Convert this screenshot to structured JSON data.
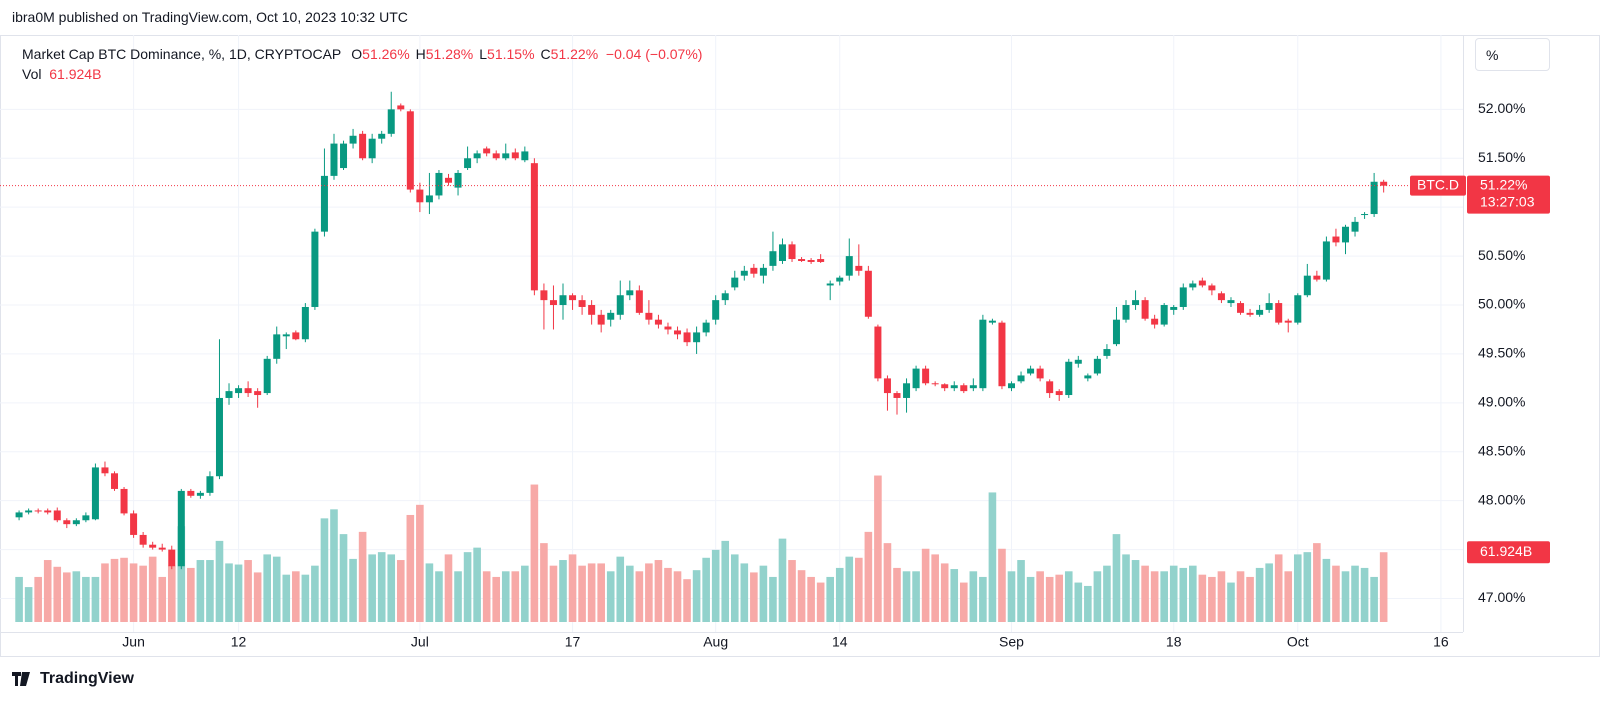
{
  "header": {
    "published": "ibra0M published on TradingView.com, Oct 10, 2023 10:32 UTC"
  },
  "legend": {
    "title": "Market Cap BTC Dominance, %, 1D, CRYPTOCAP",
    "items": [
      {
        "label": "O",
        "value": "51.26%"
      },
      {
        "label": "H",
        "value": "51.28%"
      },
      {
        "label": "L",
        "value": "51.15%"
      },
      {
        "label": "C",
        "value": "51.22%"
      }
    ],
    "change": "−0.04 (−0.07%)",
    "volume_label": "Vol",
    "volume_value": "61.924B"
  },
  "scale_button": "%",
  "footer": "TradingView",
  "chart_data": {
    "type": "candlestick",
    "x": [
      "2023-05-20",
      "2023-05-21",
      "2023-05-22",
      "2023-05-23",
      "2023-05-24",
      "2023-05-25",
      "2023-05-26",
      "2023-05-27",
      "2023-05-28",
      "2023-05-29",
      "2023-05-30",
      "2023-05-31",
      "2023-06-01",
      "2023-06-02",
      "2023-06-03",
      "2023-06-04",
      "2023-06-05",
      "2023-06-06",
      "2023-06-07",
      "2023-06-08",
      "2023-06-09",
      "2023-06-10",
      "2023-06-11",
      "2023-06-12",
      "2023-06-13",
      "2023-06-14",
      "2023-06-15",
      "2023-06-16",
      "2023-06-17",
      "2023-06-18",
      "2023-06-19",
      "2023-06-20",
      "2023-06-21",
      "2023-06-22",
      "2023-06-23",
      "2023-06-24",
      "2023-06-25",
      "2023-06-26",
      "2023-06-27",
      "2023-06-28",
      "2023-06-29",
      "2023-06-30",
      "2023-07-01",
      "2023-07-02",
      "2023-07-03",
      "2023-07-04",
      "2023-07-05",
      "2023-07-06",
      "2023-07-07",
      "2023-07-08",
      "2023-07-09",
      "2023-07-10",
      "2023-07-11",
      "2023-07-12",
      "2023-07-13",
      "2023-07-14",
      "2023-07-15",
      "2023-07-16",
      "2023-07-17",
      "2023-07-18",
      "2023-07-19",
      "2023-07-20",
      "2023-07-21",
      "2023-07-22",
      "2023-07-23",
      "2023-07-24",
      "2023-07-25",
      "2023-07-26",
      "2023-07-27",
      "2023-07-28",
      "2023-07-29",
      "2023-07-30",
      "2023-07-31",
      "2023-08-01",
      "2023-08-02",
      "2023-08-03",
      "2023-08-04",
      "2023-08-05",
      "2023-08-06",
      "2023-08-07",
      "2023-08-08",
      "2023-08-09",
      "2023-08-10",
      "2023-08-11",
      "2023-08-12",
      "2023-08-13",
      "2023-08-14",
      "2023-08-15",
      "2023-08-16",
      "2023-08-17",
      "2023-08-18",
      "2023-08-19",
      "2023-08-20",
      "2023-08-21",
      "2023-08-22",
      "2023-08-23",
      "2023-08-24",
      "2023-08-25",
      "2023-08-26",
      "2023-08-27",
      "2023-08-28",
      "2023-08-29",
      "2023-08-30",
      "2023-08-31",
      "2023-09-01",
      "2023-09-02",
      "2023-09-03",
      "2023-09-04",
      "2023-09-05",
      "2023-09-06",
      "2023-09-07",
      "2023-09-08",
      "2023-09-09",
      "2023-09-10",
      "2023-09-11",
      "2023-09-12",
      "2023-09-13",
      "2023-09-14",
      "2023-09-15",
      "2023-09-16",
      "2023-09-17",
      "2023-09-18",
      "2023-09-19",
      "2023-09-20",
      "2023-09-21",
      "2023-09-22",
      "2023-09-23",
      "2023-09-24",
      "2023-09-25",
      "2023-09-26",
      "2023-09-27",
      "2023-09-28",
      "2023-09-29",
      "2023-09-30",
      "2023-10-01",
      "2023-10-02",
      "2023-10-03",
      "2023-10-04",
      "2023-10-05",
      "2023-10-06",
      "2023-10-07",
      "2023-10-08",
      "2023-10-09",
      "2023-10-10"
    ],
    "open": [
      47.83,
      47.88,
      47.9,
      47.9,
      47.9,
      47.8,
      47.76,
      47.8,
      47.81,
      48.34,
      48.28,
      48.12,
      47.87,
      47.65,
      47.55,
      47.52,
      47.5,
      47.33,
      48.1,
      48.05,
      48.08,
      48.25,
      49.05,
      49.1,
      49.15,
      49.12,
      49.1,
      49.45,
      49.68,
      49.72,
      49.65,
      49.98,
      50.75,
      51.32,
      51.4,
      51.65,
      51.75,
      51.5,
      51.7,
      51.75,
      52.04,
      51.98,
      51.18,
      51.05,
      51.12,
      51.3,
      51.2,
      51.4,
      51.5,
      51.6,
      51.55,
      51.5,
      51.56,
      51.48,
      51.45,
      50.15,
      50.05,
      50.0,
      50.1,
      50.05,
      50.0,
      49.9,
      49.85,
      49.9,
      50.1,
      50.15,
      49.92,
      49.85,
      49.78,
      49.74,
      49.72,
      49.62,
      49.72,
      49.85,
      50.05,
      50.18,
      50.3,
      50.38,
      50.3,
      50.4,
      50.45,
      50.62,
      50.47,
      50.46,
      50.47,
      50.2,
      50.24,
      50.3,
      50.4,
      50.35,
      49.78,
      49.25,
      49.1,
      49.05,
      49.15,
      49.35,
      49.2,
      49.19,
      49.15,
      49.18,
      49.15,
      49.15,
      49.82,
      49.82,
      49.15,
      49.22,
      49.3,
      49.35,
      49.22,
      49.12,
      49.08,
      49.4,
      49.25,
      49.3,
      49.48,
      49.6,
      49.85,
      50.0,
      50.05,
      49.86,
      49.8,
      49.95,
      49.98,
      50.18,
      50.25,
      50.2,
      50.12,
      50.02,
      50.02,
      49.92,
      49.9,
      49.95,
      50.02,
      49.84,
      49.82,
      50.1,
      50.3,
      50.26,
      50.7,
      50.64,
      50.75,
      50.92,
      50.93,
      51.26
    ],
    "high": [
      47.9,
      47.92,
      47.92,
      47.92,
      47.93,
      47.82,
      47.82,
      47.88,
      48.38,
      48.4,
      48.3,
      48.14,
      47.9,
      47.68,
      47.58,
      47.56,
      47.54,
      48.12,
      48.12,
      48.1,
      48.3,
      49.65,
      49.2,
      49.18,
      49.22,
      49.15,
      49.48,
      49.78,
      49.72,
      49.74,
      50.02,
      50.78,
      51.6,
      51.75,
      51.68,
      51.8,
      51.78,
      51.75,
      51.78,
      52.18,
      52.06,
      52.0,
      51.25,
      51.35,
      51.38,
      51.34,
      51.38,
      51.62,
      51.58,
      51.62,
      51.58,
      51.65,
      51.6,
      51.62,
      51.5,
      50.22,
      50.2,
      50.22,
      50.12,
      50.1,
      50.05,
      49.95,
      49.95,
      50.25,
      50.25,
      50.2,
      50.05,
      49.9,
      49.82,
      49.78,
      49.76,
      49.78,
      49.85,
      50.1,
      50.15,
      50.35,
      50.4,
      50.42,
      50.42,
      50.75,
      50.68,
      50.65,
      50.49,
      50.48,
      50.52,
      50.25,
      50.3,
      50.68,
      50.62,
      50.4,
      49.8,
      49.28,
      49.12,
      49.25,
      49.38,
      49.38,
      49.22,
      49.2,
      49.22,
      49.2,
      49.25,
      49.9,
      49.86,
      49.84,
      49.22,
      49.32,
      49.38,
      49.38,
      49.24,
      49.14,
      49.45,
      49.48,
      49.3,
      49.48,
      49.6,
      49.98,
      50.05,
      50.15,
      50.08,
      49.9,
      50.02,
      50.0,
      50.22,
      50.25,
      50.28,
      50.22,
      50.14,
      50.08,
      50.04,
      49.96,
      50.0,
      50.12,
      50.05,
      49.86,
      50.12,
      50.42,
      50.35,
      50.7,
      50.78,
      50.82,
      50.9,
      50.95,
      51.35,
      51.28
    ],
    "low": [
      47.8,
      47.86,
      47.87,
      47.86,
      47.78,
      47.72,
      47.74,
      47.78,
      47.8,
      48.25,
      48.1,
      47.85,
      47.62,
      47.52,
      47.5,
      47.48,
      47.3,
      47.3,
      48.03,
      48.02,
      48.05,
      48.22,
      48.98,
      49.05,
      49.06,
      48.95,
      49.08,
      49.4,
      49.55,
      49.64,
      49.62,
      49.95,
      50.7,
      51.28,
      51.38,
      51.6,
      51.48,
      51.45,
      51.65,
      51.72,
      51.98,
      51.15,
      50.95,
      50.93,
      51.08,
      51.22,
      51.12,
      51.38,
      51.45,
      51.52,
      51.48,
      51.48,
      51.48,
      51.46,
      50.1,
      49.75,
      49.75,
      49.85,
      49.95,
      49.9,
      49.8,
      49.72,
      49.78,
      49.85,
      50.05,
      49.9,
      49.8,
      49.76,
      49.7,
      49.65,
      49.58,
      49.5,
      49.68,
      49.8,
      50.0,
      50.15,
      50.25,
      50.28,
      50.22,
      50.35,
      50.42,
      50.44,
      50.44,
      50.42,
      50.43,
      50.05,
      50.2,
      50.25,
      50.3,
      49.86,
      49.22,
      48.92,
      48.88,
      48.9,
      49.12,
      49.18,
      49.17,
      49.12,
      49.12,
      49.1,
      49.12,
      49.12,
      49.8,
      49.14,
      49.12,
      49.2,
      49.28,
      49.22,
      49.05,
      49.02,
      49.05,
      49.36,
      49.22,
      49.28,
      49.45,
      49.58,
      49.82,
      49.95,
      49.84,
      49.76,
      49.78,
      49.9,
      49.95,
      50.15,
      50.18,
      50.1,
      50.02,
      49.98,
      49.9,
      49.88,
      49.88,
      49.92,
      49.8,
      49.72,
      49.8,
      50.08,
      50.24,
      50.24,
      50.6,
      50.52,
      50.7,
      50.88,
      50.9,
      51.15
    ],
    "close": [
      47.88,
      47.9,
      47.89,
      47.88,
      47.8,
      47.76,
      47.8,
      47.85,
      48.34,
      48.28,
      48.12,
      47.87,
      47.65,
      47.55,
      47.52,
      47.5,
      47.33,
      48.1,
      48.05,
      48.08,
      48.25,
      49.05,
      49.12,
      49.15,
      49.1,
      49.08,
      49.45,
      49.7,
      49.7,
      49.65,
      49.98,
      50.75,
      51.32,
      51.65,
      51.65,
      51.73,
      51.5,
      51.7,
      51.75,
      52.0,
      52.0,
      51.18,
      51.05,
      51.12,
      51.35,
      51.25,
      51.35,
      51.5,
      51.55,
      51.55,
      51.5,
      51.55,
      51.5,
      51.57,
      50.15,
      50.05,
      50.0,
      50.1,
      50.05,
      49.98,
      49.9,
      49.8,
      49.92,
      50.1,
      50.15,
      49.92,
      49.85,
      49.8,
      49.75,
      49.7,
      49.62,
      49.72,
      49.82,
      50.05,
      50.12,
      50.28,
      50.35,
      50.32,
      50.38,
      50.55,
      50.62,
      50.47,
      50.45,
      50.44,
      50.44,
      50.22,
      50.28,
      50.5,
      50.35,
      49.88,
      49.25,
      49.1,
      49.05,
      49.2,
      49.35,
      49.2,
      49.19,
      49.15,
      49.18,
      49.12,
      49.18,
      49.85,
      49.84,
      49.17,
      49.2,
      49.28,
      49.35,
      49.25,
      49.1,
      49.08,
      49.42,
      49.44,
      49.28,
      49.45,
      49.55,
      49.85,
      50.0,
      50.05,
      49.86,
      49.8,
      50.0,
      49.98,
      50.18,
      50.22,
      50.2,
      50.15,
      50.05,
      50.05,
      49.92,
      49.9,
      49.95,
      50.02,
      49.82,
      49.82,
      50.1,
      50.3,
      50.26,
      50.65,
      50.64,
      50.8,
      50.85,
      50.93,
      51.26,
      51.22
    ],
    "volume": [
      40,
      31,
      40,
      55,
      49,
      44,
      45,
      40,
      40,
      52,
      56,
      57,
      52,
      50,
      58,
      40,
      50,
      85,
      48,
      55,
      55,
      72,
      52,
      51,
      55,
      44,
      60,
      58,
      42,
      45,
      42,
      50,
      92,
      100,
      78,
      56,
      80,
      60,
      62,
      60,
      55,
      95,
      104,
      52,
      45,
      60,
      45,
      62,
      66,
      45,
      40,
      45,
      45,
      50,
      122,
      70,
      50,
      55,
      60,
      50,
      52,
      52,
      45,
      58,
      50,
      45,
      52,
      55,
      48,
      45,
      38,
      46,
      57,
      64,
      72,
      60,
      52,
      44,
      50,
      40,
      74,
      55,
      46,
      40,
      35,
      40,
      48,
      58,
      57,
      80,
      130,
      70,
      48,
      45,
      45,
      65,
      60,
      52,
      47,
      35,
      45,
      40,
      115,
      65,
      45,
      55,
      40,
      45,
      40,
      42,
      45,
      35,
      32,
      45,
      50,
      78,
      60,
      55,
      50,
      45,
      45,
      50,
      48,
      50,
      42,
      40,
      45,
      35,
      45,
      40,
      48,
      52,
      60,
      45,
      60,
      62,
      70,
      56,
      50,
      45,
      50,
      48,
      40,
      61.924
    ],
    "up_color": "#089981",
    "down_color": "#f23645",
    "volume_up_color": "#92d2cc",
    "volume_down_color": "#f7a9a7",
    "xlim": [
      "2023-05-18",
      "2023-10-18"
    ],
    "xticks": [
      {
        "value": "2023-06-01",
        "label": "Jun"
      },
      {
        "value": "2023-06-12",
        "label": "12"
      },
      {
        "value": "2023-07-01",
        "label": "Jul"
      },
      {
        "value": "2023-07-17",
        "label": "17"
      },
      {
        "value": "2023-08-01",
        "label": "Aug"
      },
      {
        "value": "2023-08-14",
        "label": "14"
      },
      {
        "value": "2023-09-01",
        "label": "Sep"
      },
      {
        "value": "2023-09-18",
        "label": "18"
      },
      {
        "value": "2023-10-01",
        "label": "Oct"
      },
      {
        "value": "2023-10-16",
        "label": "16"
      }
    ],
    "ylim": [
      46.76,
      52.76
    ],
    "yticks": [
      {
        "value": 47,
        "label": "47.00%"
      },
      {
        "value": 47.5,
        "label": "47.50%"
      },
      {
        "value": 48,
        "label": "48.00%"
      },
      {
        "value": 48.5,
        "label": "48.50%"
      },
      {
        "value": 49,
        "label": "49.00%"
      },
      {
        "value": 49.5,
        "label": "49.50%"
      },
      {
        "value": 50,
        "label": "50.00%"
      },
      {
        "value": 50.5,
        "label": "50.50%"
      },
      {
        "value": 51,
        "label": "51.00%"
      },
      {
        "value": 51.5,
        "label": "51.50%"
      },
      {
        "value": 52,
        "label": "52.00%"
      }
    ],
    "volume_lim": [
      0,
      521
    ],
    "grid": true,
    "price_tag": {
      "symbol": "BTC.D",
      "value": 51.22,
      "label": "51.22%",
      "countdown": "13:27:03"
    },
    "volume_tag": {
      "value": 61.924,
      "label": "61.924B"
    }
  }
}
